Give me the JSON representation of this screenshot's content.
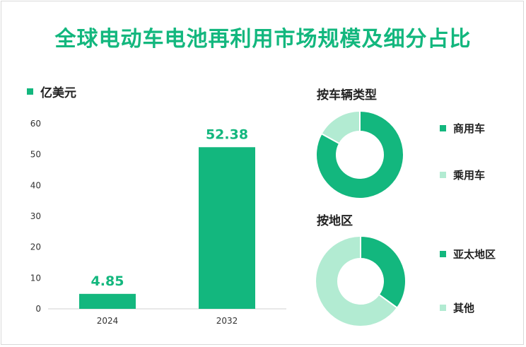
{
  "title": "全球电动车电池再利用市场规模及细分占比",
  "colors": {
    "primary": "#13b77e",
    "secondary": "#b2ebd2",
    "title": "#13b77e"
  },
  "chart_data": [
    {
      "type": "bar",
      "legend": "亿美元",
      "categories": [
        "2024",
        "2032"
      ],
      "values": [
        4.85,
        52.38
      ],
      "value_labels": [
        "4.85",
        "52.38"
      ],
      "ylim": [
        0,
        60
      ],
      "yticks": [
        "0",
        "10",
        "20",
        "30",
        "40",
        "50",
        "60"
      ],
      "legend_position": "top-left",
      "grid": false
    },
    {
      "type": "pie",
      "title": "按车辆类型",
      "labels": [
        "商用车",
        "乘用车"
      ],
      "values": [
        83,
        17
      ]
    },
    {
      "type": "pie",
      "title": "按地区",
      "labels": [
        "亚太地区",
        "其他"
      ],
      "values": [
        35,
        65
      ]
    }
  ]
}
